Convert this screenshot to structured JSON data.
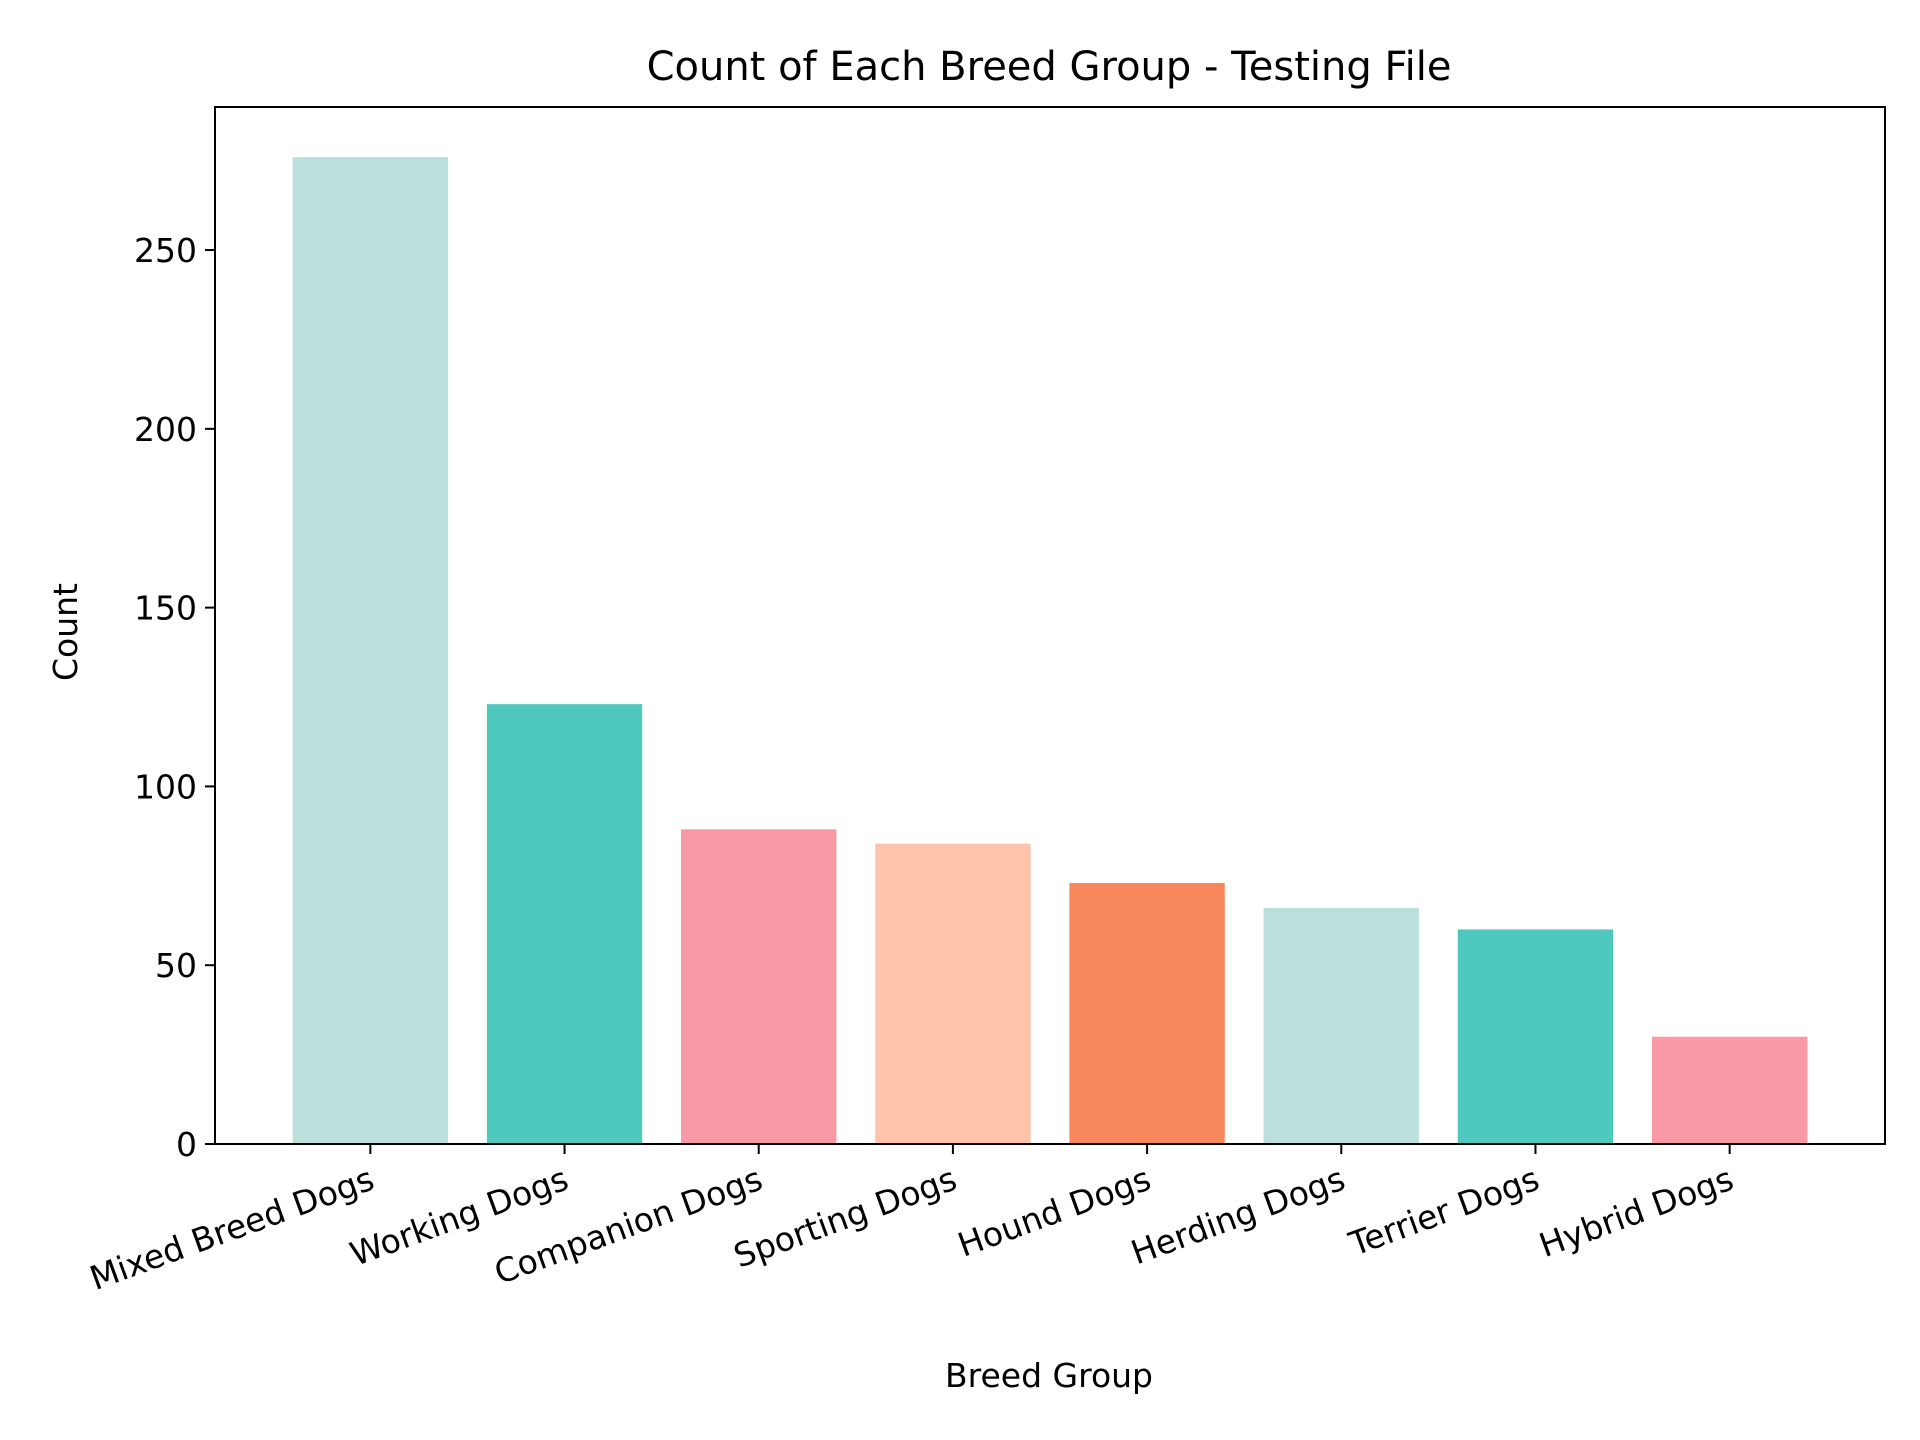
{
  "chart_data": {
    "type": "bar",
    "title": "Count of Each Breed Group - Testing File",
    "xlabel": "Breed Group",
    "ylabel": "Count",
    "categories": [
      "Mixed Breed Dogs",
      "Working Dogs",
      "Companion Dogs",
      "Sporting Dogs",
      "Hound Dogs",
      "Herding Dogs",
      "Terrier Dogs",
      "Hybrid Dogs"
    ],
    "values": [
      276,
      123,
      88,
      84,
      73,
      66,
      60,
      30
    ],
    "colors": [
      "#bbe0dc",
      "#4fc8be",
      "#f899a5",
      "#fdc3ab",
      "#f7885c",
      "#bbe0dc",
      "#4fc8be",
      "#f899a5"
    ],
    "ylim": [
      0,
      290
    ],
    "yticks": [
      0,
      50,
      100,
      150,
      200,
      250
    ],
    "grid": false,
    "legend": false
  }
}
